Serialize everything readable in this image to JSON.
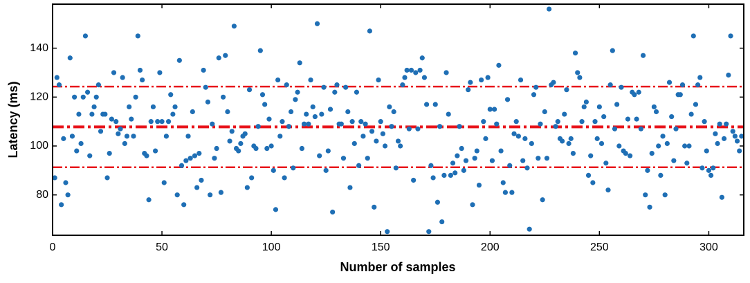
{
  "chart_data": {
    "type": "scatter",
    "x_label": "Number of samples",
    "y_label": "Latency (ms)",
    "color": "#1f6fb5",
    "xlim": [
      0,
      316
    ],
    "ylim": [
      63.5,
      158
    ],
    "xticks": [
      0,
      50,
      100,
      150,
      200,
      250,
      300
    ],
    "yticks": [
      80,
      100,
      120,
      140
    ],
    "mean_line": 107.8,
    "bound_lines": [
      91.3,
      124.3
    ],
    "line_color": "#e8141b",
    "x": [
      1,
      2,
      3,
      4,
      5,
      6,
      7,
      8,
      9,
      10,
      11,
      12,
      13,
      14,
      15,
      16,
      17,
      18,
      19,
      20,
      21,
      22,
      23,
      24,
      25,
      26,
      27,
      28,
      29,
      30,
      31,
      32,
      33,
      34,
      35,
      36,
      37,
      38,
      39,
      40,
      41,
      42,
      43,
      44,
      45,
      46,
      47,
      48,
      49,
      50,
      51,
      52,
      53,
      54,
      55,
      56,
      57,
      58,
      59,
      60,
      61,
      62,
      63,
      64,
      65,
      66,
      67,
      68,
      69,
      70,
      71,
      72,
      73,
      74,
      75,
      76,
      77,
      78,
      79,
      80,
      81,
      82,
      83,
      84,
      85,
      86,
      87,
      88,
      89,
      90,
      91,
      92,
      93,
      94,
      95,
      96,
      97,
      98,
      99,
      100,
      101,
      102,
      103,
      104,
      105,
      106,
      107,
      108,
      109,
      110,
      111,
      112,
      113,
      114,
      115,
      116,
      117,
      118,
      119,
      120,
      121,
      122,
      123,
      124,
      125,
      126,
      127,
      128,
      129,
      130,
      131,
      132,
      133,
      134,
      135,
      136,
      137,
      138,
      139,
      140,
      141,
      142,
      143,
      144,
      145,
      146,
      147,
      148,
      149,
      150,
      151,
      152,
      153,
      154,
      155,
      156,
      157,
      158,
      159,
      160,
      161,
      162,
      163,
      164,
      165,
      166,
      167,
      168,
      169,
      170,
      171,
      172,
      173,
      174,
      175,
      176,
      177,
      178,
      179,
      180,
      181,
      182,
      183,
      184,
      185,
      186,
      187,
      188,
      189,
      190,
      191,
      192,
      193,
      194,
      195,
      196,
      197,
      198,
      199,
      200,
      201,
      202,
      203,
      204,
      205,
      206,
      207,
      208,
      209,
      210,
      211,
      212,
      213,
      214,
      215,
      216,
      217,
      218,
      219,
      220,
      221,
      222,
      223,
      224,
      225,
      226,
      227,
      228,
      229,
      230,
      231,
      232,
      233,
      234,
      235,
      236,
      237,
      238,
      239,
      240,
      241,
      242,
      243,
      244,
      245,
      246,
      247,
      248,
      249,
      250,
      251,
      252,
      253,
      254,
      255,
      256,
      257,
      258,
      259,
      260,
      261,
      262,
      263,
      264,
      265,
      266,
      267,
      268,
      269,
      270,
      271,
      272,
      273,
      274,
      275,
      276,
      277,
      278,
      279,
      280,
      281,
      282,
      283,
      284,
      285,
      286,
      287,
      288,
      289,
      290,
      291,
      292,
      293,
      294,
      295,
      296,
      297,
      298,
      299,
      300,
      301,
      302,
      303,
      304,
      305,
      306,
      307,
      308,
      309,
      310,
      311,
      312,
      313,
      314,
      315
    ],
    "values": [
      87,
      128,
      125,
      76,
      103,
      85,
      80,
      136,
      104,
      120,
      98,
      113,
      101,
      120,
      145,
      122,
      96,
      113,
      116,
      120,
      125,
      106,
      113,
      113,
      87,
      97,
      111,
      130,
      110,
      105,
      107,
      128,
      101,
      104,
      116,
      111,
      104,
      120,
      145,
      131,
      127,
      97,
      96,
      78,
      110,
      116,
      98,
      110,
      130,
      110,
      85,
      104,
      110,
      121,
      113,
      116,
      80,
      135,
      92,
      76,
      94,
      104,
      95,
      114,
      96,
      83,
      97,
      86,
      131,
      124,
      118,
      80,
      109,
      95,
      99,
      136,
      81,
      120,
      137,
      114,
      102,
      106,
      149,
      99,
      98,
      101,
      104,
      105,
      83,
      123,
      87,
      100,
      99,
      108,
      139,
      121,
      117,
      99,
      111,
      100,
      90,
      74,
      127,
      104,
      110,
      87,
      125,
      108,
      114,
      91,
      119,
      122,
      134,
      99,
      109,
      113,
      109,
      127,
      116,
      112,
      150,
      96,
      113,
      124,
      90,
      98,
      115,
      73,
      122,
      125,
      109,
      109,
      95,
      124,
      114,
      83,
      110,
      101,
      122,
      92,
      110,
      104,
      109,
      95,
      147,
      106,
      75,
      102,
      127,
      110,
      105,
      100,
      65,
      116,
      108,
      114,
      91,
      102,
      100,
      125,
      128,
      131,
      107,
      131,
      86,
      130,
      107,
      131,
      136,
      128,
      117,
      65,
      92,
      87,
      117,
      77,
      108,
      69,
      88,
      130,
      113,
      88,
      93,
      89,
      96,
      108,
      99,
      90,
      94,
      123,
      126,
      76,
      95,
      98,
      84,
      127,
      110,
      103,
      128,
      115,
      94,
      115,
      109,
      133,
      98,
      85,
      81,
      119,
      92,
      81,
      105,
      110,
      104,
      127,
      94,
      103,
      91,
      66,
      101,
      121,
      124,
      95,
      109,
      78,
      114,
      95,
      156,
      125,
      126,
      108,
      110,
      103,
      102,
      113,
      123,
      101,
      103,
      97,
      138,
      130,
      128,
      110,
      116,
      118,
      88,
      96,
      85,
      110,
      103,
      116,
      101,
      112,
      93,
      82,
      125,
      139,
      107,
      117,
      100,
      124,
      98,
      97,
      111,
      96,
      122,
      121,
      111,
      122,
      107,
      137,
      80,
      90,
      75,
      97,
      116,
      114,
      100,
      88,
      104,
      80,
      101,
      126,
      112,
      94,
      107,
      121,
      121,
      125,
      100,
      93,
      100,
      113,
      145,
      117,
      125,
      128,
      91,
      110,
      98,
      90,
      88,
      91,
      105,
      101,
      109,
      79,
      103,
      109,
      129,
      145,
      106,
      104,
      102,
      98,
      104
    ]
  }
}
